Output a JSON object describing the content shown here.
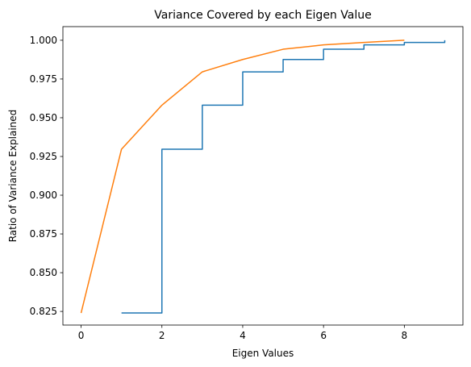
{
  "chart_data": {
    "type": "line",
    "title": "Variance Covered by each Eigen Value",
    "xlabel": "Eigen Values",
    "ylabel": "Ratio of Variance Explained",
    "xlim": [
      -0.45,
      9.45
    ],
    "ylim": [
      0.8162,
      1.0088
    ],
    "xticks": [
      0,
      2,
      4,
      6,
      8
    ],
    "xtick_labels": [
      "0",
      "2",
      "4",
      "6",
      "8"
    ],
    "yticks": [
      0.825,
      0.85,
      0.875,
      0.9,
      0.925,
      0.95,
      0.975,
      1.0
    ],
    "ytick_labels": [
      "0.825",
      "0.850",
      "0.875",
      "0.900",
      "0.925",
      "0.950",
      "0.975",
      "1.000"
    ],
    "grid": false,
    "series": [
      {
        "style": "step-post",
        "color": "#1f77b4",
        "x": [
          1,
          2,
          3,
          4,
          5,
          6,
          7,
          8,
          9
        ],
        "y": [
          0.824,
          0.9297,
          0.9581,
          0.9796,
          0.9876,
          0.9942,
          0.997,
          0.9986,
          1.0
        ]
      },
      {
        "style": "line",
        "color": "#ff7f0e",
        "x": [
          0,
          1,
          2,
          3,
          4,
          5,
          6,
          7,
          8
        ],
        "y": [
          0.824,
          0.9297,
          0.9581,
          0.9796,
          0.9876,
          0.9942,
          0.997,
          0.9986,
          1.0
        ]
      }
    ]
  }
}
